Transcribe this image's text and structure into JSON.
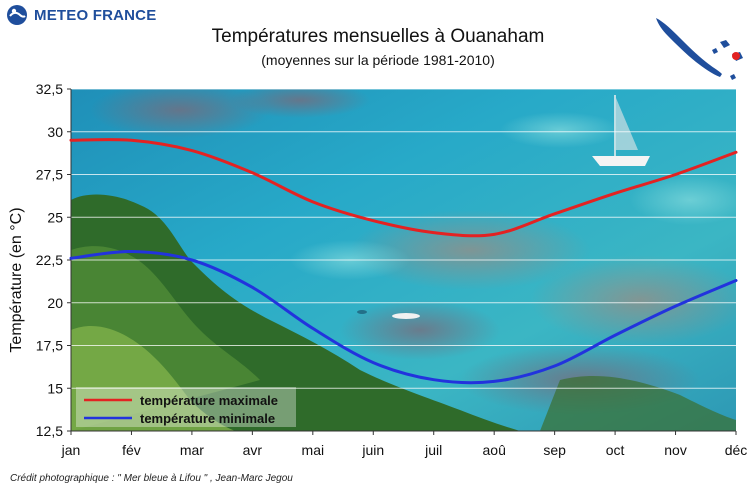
{
  "header": {
    "logo_text": "METEO FRANCE",
    "title": "Températures mensuelles à Ouanaham",
    "subtitle": "(moyennes sur la période 1981-2010)"
  },
  "credit": "Crédit photographique : \" Mer bleue à Lifou \" , Jean-Marc Jegou",
  "colors": {
    "max_series": "#e32222",
    "min_series": "#2233dd",
    "logo_blue": "#1f4e9c",
    "map_marker": "#e32222"
  },
  "chart_data": {
    "type": "line",
    "title": "Températures mensuelles à Ouanaham",
    "subtitle": "(moyennes sur la période 1981-2010)",
    "xlabel": "",
    "ylabel": "Température (en °C)",
    "categories": [
      "jan",
      "fév",
      "mar",
      "avr",
      "mai",
      "juin",
      "juil",
      "aoû",
      "sep",
      "oct",
      "nov",
      "déc"
    ],
    "ylim": [
      12.5,
      32.5
    ],
    "yticks": [
      "12,5",
      "15",
      "17,5",
      "20",
      "22,5",
      "25",
      "27,5",
      "30",
      "32,5"
    ],
    "ytick_values": [
      12.5,
      15,
      17.5,
      20,
      22.5,
      25,
      27.5,
      30,
      32.5
    ],
    "grid": true,
    "legend_position": "bottom-left",
    "series": [
      {
        "name": "température maximale",
        "color": "#e32222",
        "values": [
          29.5,
          29.5,
          28.9,
          27.6,
          25.9,
          24.8,
          24.1,
          24.0,
          25.2,
          26.4,
          27.5,
          28.8
        ]
      },
      {
        "name": "température minimale",
        "color": "#2233dd",
        "values": [
          22.6,
          23.0,
          22.5,
          20.9,
          18.5,
          16.5,
          15.5,
          15.4,
          16.3,
          18.1,
          19.8,
          21.3
        ]
      }
    ]
  }
}
